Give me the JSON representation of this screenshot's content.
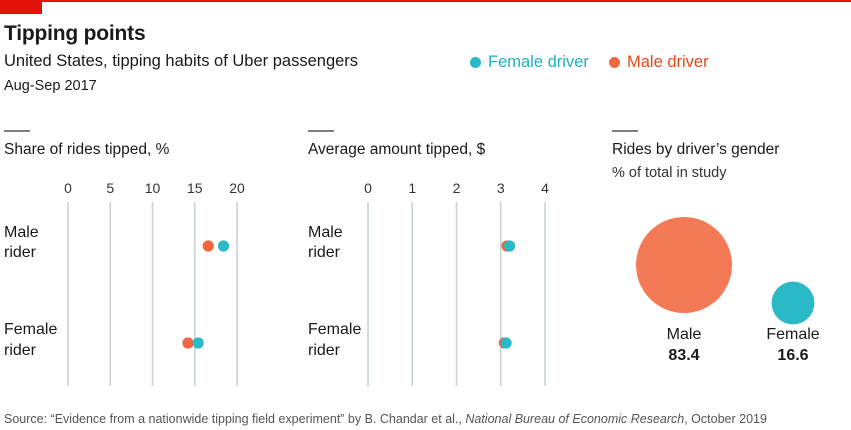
{
  "header": {
    "title": "Tipping points",
    "subtitle": "United States, tipping habits of Uber passengers",
    "date_range": "Aug-Sep 2017"
  },
  "legend": [
    {
      "label": "Female driver",
      "color": "#2ab9c6"
    },
    {
      "label": "Male driver",
      "color": "#f0663f"
    }
  ],
  "colors": {
    "female": "#2ab9c6",
    "male": "#f0663f",
    "grid": "#c8d3d9",
    "bubble_male": "#f47a55"
  },
  "chart_data": [
    {
      "type": "scatter",
      "title": "Share of rides tipped, %",
      "ticks": [
        0,
        5,
        10,
        15,
        20
      ],
      "xlim": [
        0,
        20
      ],
      "categories": [
        "Male\nrider",
        "Female\nrider"
      ],
      "series": [
        {
          "name": "Male driver",
          "values": [
            16.6,
            14.2
          ]
        },
        {
          "name": "Female driver",
          "values": [
            18.4,
            15.4
          ]
        }
      ]
    },
    {
      "type": "scatter",
      "title": "Average amount tipped, $",
      "ticks": [
        0,
        1,
        2,
        3,
        4
      ],
      "xlim": [
        0,
        4
      ],
      "categories": [
        "Male\nrider",
        "Female\nrider"
      ],
      "series": [
        {
          "name": "Male driver",
          "values": [
            3.14,
            3.08
          ]
        },
        {
          "name": "Female driver",
          "values": [
            3.2,
            3.12
          ]
        }
      ]
    },
    {
      "type": "bubble",
      "title": "Rides by driver’s gender",
      "subtitle": "% of total in study",
      "categories": [
        "Male",
        "Female"
      ],
      "values": [
        83.4,
        16.6
      ]
    }
  ],
  "source": {
    "prefix": "Source: “Evidence from a nationwide tipping field experiment” by B. Chandar et al., ",
    "publication": "National Bureau of Economic Research",
    "suffix": ", October 2019"
  }
}
